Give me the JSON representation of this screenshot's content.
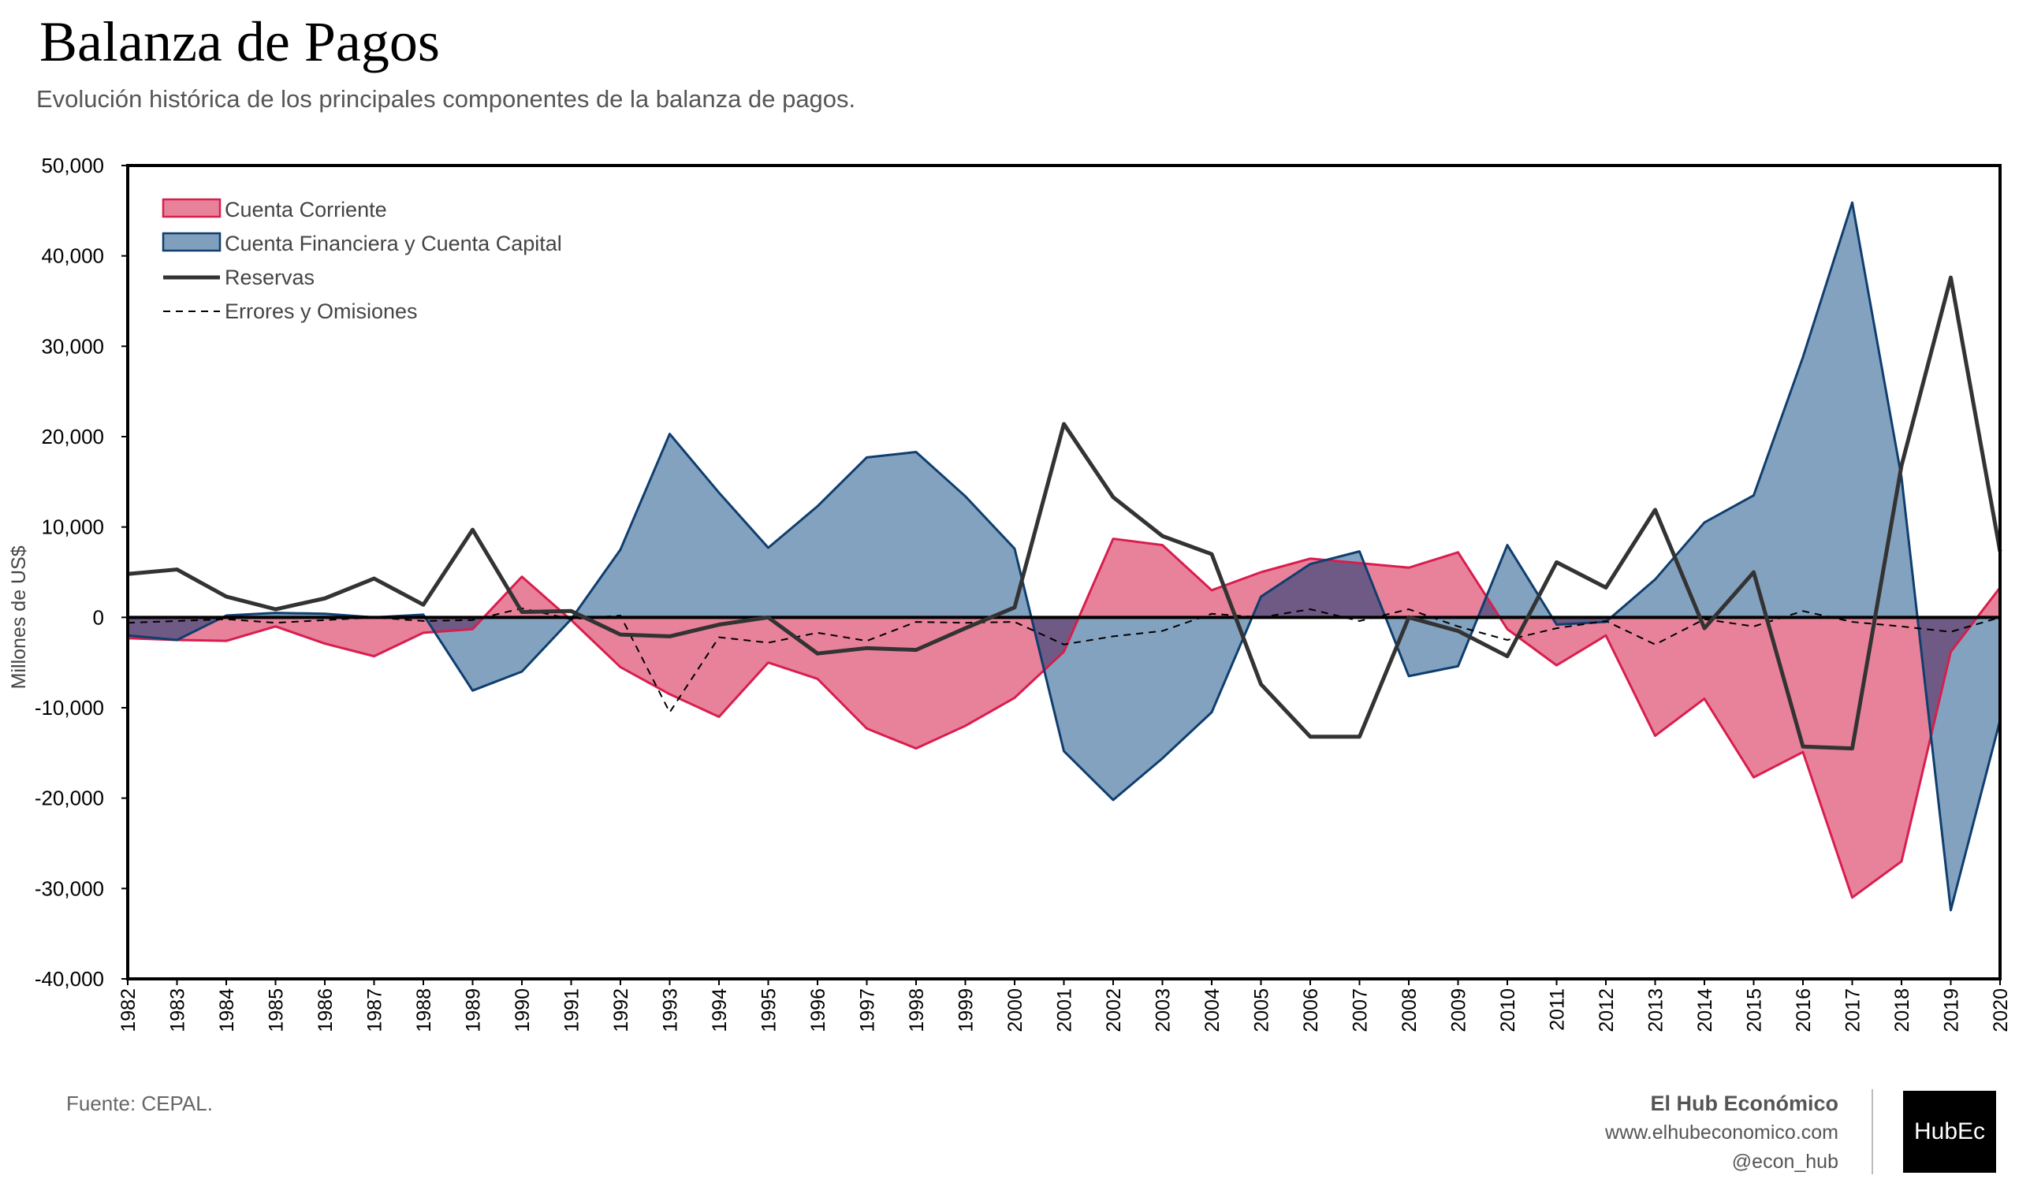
{
  "header": {
    "title": "Balanza de Pagos",
    "subtitle": "Evolución histórica de los principales componentes de la balanza de pagos."
  },
  "footer": {
    "source": "Fuente: CEPAL.",
    "brand_name": "El Hub Económico",
    "brand_url": "www.elhubeconomico.com",
    "brand_handle": "@econ_hub",
    "logo_text": "HubEc"
  },
  "colors": {
    "current_account_fill": "#e8829a",
    "current_account_line": "#d81e4e",
    "financial_fill": "#7f9fbd",
    "financial_line": "#0f3e6e",
    "reserves_line": "#333333",
    "errors_line": "#000000",
    "overlap_fill": "#6e5a84"
  },
  "chart_data": {
    "type": "area",
    "ylabel": "Millones de US$",
    "ylim": [
      -40000,
      50000
    ],
    "yticks": [
      -40000,
      -30000,
      -20000,
      -10000,
      0,
      10000,
      20000,
      30000,
      40000,
      50000
    ],
    "ytick_labels": [
      "-40,000",
      "-30,000",
      "-20,000",
      "-10,000",
      "0",
      "10,000",
      "20,000",
      "30,000",
      "40,000",
      "50,000"
    ],
    "legend_position": "top-left",
    "categories": [
      "1982",
      "1983",
      "1984",
      "1985",
      "1986",
      "1987",
      "1988",
      "1989",
      "1990",
      "1991",
      "1992",
      "1993",
      "1994",
      "1995",
      "1996",
      "1997",
      "1998",
      "1999",
      "2000",
      "2001",
      "2002",
      "2003",
      "2004",
      "2005",
      "2006",
      "2007",
      "2008",
      "2009",
      "2010",
      "2011",
      "2012",
      "2013",
      "2014",
      "2015",
      "2016",
      "2017",
      "2018",
      "2019",
      "2020"
    ],
    "series": [
      {
        "name": "Cuenta Corriente",
        "style": "area",
        "values": [
          -2300,
          -2500,
          -2600,
          -1000,
          -2900,
          -4300,
          -1700,
          -1300,
          4500,
          -300,
          -5500,
          -8500,
          -11000,
          -5000,
          -6800,
          -12300,
          -14500,
          -12000,
          -8900,
          -3800,
          8700,
          8000,
          3000,
          5000,
          6500,
          6000,
          5500,
          7200,
          -1300,
          -5300,
          -2000,
          -13100,
          -9000,
          -17700,
          -14900,
          -31000,
          -27000,
          -3800,
          3300
        ]
      },
      {
        "name": "Cuenta Financiera y Cuenta Capital",
        "style": "area",
        "values": [
          -2000,
          -2500,
          200,
          500,
          400,
          0,
          300,
          -8100,
          -6000,
          -200,
          7500,
          20300,
          13800,
          7700,
          12300,
          17700,
          18300,
          13400,
          7600,
          -14800,
          -20200,
          -15600,
          -10500,
          2300,
          5900,
          7300,
          -6500,
          -5400,
          8000,
          -800,
          -500,
          4200,
          10500,
          13500,
          28800,
          45900,
          15500,
          -32400,
          -11400
        ]
      },
      {
        "name": "Reservas",
        "style": "line",
        "values": [
          4800,
          5300,
          2300,
          900,
          2100,
          4300,
          1400,
          9700,
          600,
          700,
          -1900,
          -2100,
          -800,
          0,
          -4000,
          -3400,
          -3600,
          -1200,
          1100,
          21400,
          13300,
          9000,
          7000,
          -7400,
          -13200,
          -13200,
          0,
          -1500,
          -4300,
          6100,
          3300,
          11900,
          -1200,
          5000,
          -14300,
          -14500,
          16800,
          37600,
          7300
        ]
      },
      {
        "name": "Errores y Omisiones",
        "style": "dashed-line",
        "values": [
          -600,
          -400,
          -200,
          -600,
          -300,
          0,
          -400,
          -300,
          1000,
          -200,
          200,
          -10500,
          -2200,
          -2800,
          -1700,
          -2600,
          -500,
          -600,
          -500,
          -3000,
          -2100,
          -1500,
          400,
          0,
          900,
          -400,
          900,
          -1000,
          -2500,
          -1200,
          -400,
          -3000,
          -200,
          -1000,
          700,
          -500,
          -1000,
          -1600,
          0
        ]
      }
    ]
  }
}
